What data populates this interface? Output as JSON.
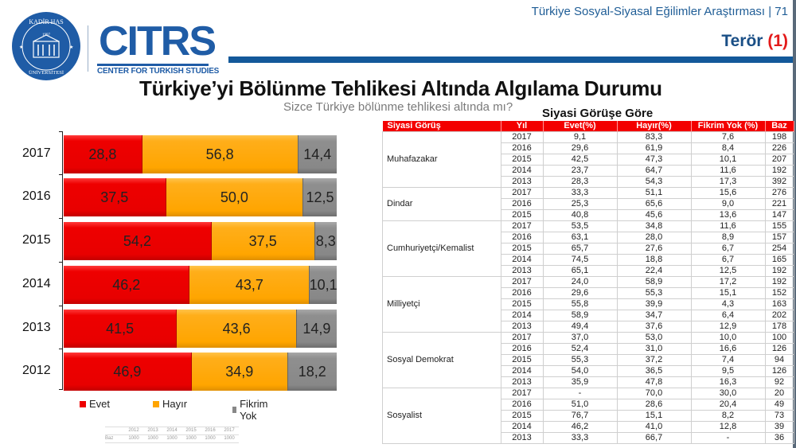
{
  "header": {
    "series_title": "Türkiye Sosyal-Siyasal Eğilimler Araştırması | 71",
    "section_title": "Terör",
    "section_number": "(1)",
    "logos": {
      "university": "Kadir Has Üniversitesi",
      "university_year": "1997",
      "center_acronym": "CITRS",
      "center_name": "CENTER FOR TURKISH STUDIES"
    }
  },
  "main": {
    "title": "Türkiye’yi Bölünme  Tehlikesi Altında Algılama Durumu",
    "question": "Sizce Türkiye bölünme tehlikesi altında mı?"
  },
  "colors": {
    "evet": "#ee0000",
    "hayir": "#ffa500",
    "fikrim_yok": "#888888",
    "brand_blue": "#13599a",
    "table_header": "#f30000"
  },
  "chart_data": [
    {
      "type": "bar",
      "orientation": "horizontal",
      "stacked": true,
      "title": "Türkiye’yi Bölünme Tehlikesi Altında Algılama Durumu",
      "subtitle": "Sizce Türkiye bölünme tehlikesi altında mı?",
      "categories": [
        "2017",
        "2016",
        "2015",
        "2014",
        "2013",
        "2012"
      ],
      "series": [
        {
          "name": "Evet",
          "values": [
            28.8,
            37.5,
            54.2,
            46.2,
            41.5,
            46.9
          ]
        },
        {
          "name": "Hayır",
          "values": [
            56.8,
            50.0,
            37.5,
            43.7,
            43.6,
            34.9
          ]
        },
        {
          "name": "Fikrim Yok",
          "values": [
            14.4,
            12.5,
            8.3,
            10.1,
            14.9,
            18.2
          ]
        }
      ],
      "labels": [
        [
          "28,8",
          "56,8",
          "14,4"
        ],
        [
          "37,5",
          "50,0",
          "12,5"
        ],
        [
          "54,2",
          "37,5",
          "8,3"
        ],
        [
          "46,2",
          "43,7",
          "10,1"
        ],
        [
          "41,5",
          "43,6",
          "14,9"
        ],
        [
          "46,9",
          "34,9",
          "18,2"
        ]
      ],
      "xlim": [
        0,
        100
      ],
      "legend": [
        "Evet",
        "Hayır",
        "Fikrim Yok"
      ],
      "legend_position": "bottom",
      "grid": false,
      "base_table": {
        "label": "Baz",
        "years": [
          "2012",
          "2013",
          "2014",
          "2015",
          "2016",
          "2017"
        ],
        "values": [
          "1000",
          "1000",
          "1000",
          "1000",
          "1000",
          "1000"
        ]
      }
    },
    {
      "type": "table",
      "title": "Siyasi Görüşe Göre",
      "columns": [
        "Siyasi Görüş",
        "Yıl",
        "Evet(%)",
        "Hayır(%)",
        "Fikrim Yok (%)",
        "Baz"
      ],
      "groups": [
        {
          "name": "Muhafazakar",
          "rows": [
            [
              "2017",
              "9,1",
              "83,3",
              "7,6",
              "198"
            ],
            [
              "2016",
              "29,6",
              "61,9",
              "8,4",
              "226"
            ],
            [
              "2015",
              "42,5",
              "47,3",
              "10,1",
              "207"
            ],
            [
              "2014",
              "23,7",
              "64,7",
              "11,6",
              "192"
            ],
            [
              "2013",
              "28,3",
              "54,3",
              "17,3",
              "392"
            ]
          ]
        },
        {
          "name": "Dindar",
          "rows": [
            [
              "2017",
              "33,3",
              "51,1",
              "15,6",
              "276"
            ],
            [
              "2016",
              "25,3",
              "65,6",
              "9,0",
              "221"
            ],
            [
              "2015",
              "40,8",
              "45,6",
              "13,6",
              "147"
            ]
          ]
        },
        {
          "name": "Cumhuriyetçi/Kemalist",
          "rows": [
            [
              "2017",
              "53,5",
              "34,8",
              "11,6",
              "155"
            ],
            [
              "2016",
              "63,1",
              "28,0",
              "8,9",
              "157"
            ],
            [
              "2015",
              "65,7",
              "27,6",
              "6,7",
              "254"
            ],
            [
              "2014",
              "74,5",
              "18,8",
              "6,7",
              "165"
            ],
            [
              "2013",
              "65,1",
              "22,4",
              "12,5",
              "192"
            ]
          ]
        },
        {
          "name": "Milliyetçi",
          "rows": [
            [
              "2017",
              "24,0",
              "58,9",
              "17,2",
              "192"
            ],
            [
              "2016",
              "29,6",
              "55,3",
              "15,1",
              "152"
            ],
            [
              "2015",
              "55,8",
              "39,9",
              "4,3",
              "163"
            ],
            [
              "2014",
              "58,9",
              "34,7",
              "6,4",
              "202"
            ],
            [
              "2013",
              "49,4",
              "37,6",
              "12,9",
              "178"
            ]
          ]
        },
        {
          "name": "Sosyal Demokrat",
          "rows": [
            [
              "2017",
              "37,0",
              "53,0",
              "10,0",
              "100"
            ],
            [
              "2016",
              "52,4",
              "31,0",
              "16,6",
              "126"
            ],
            [
              "2015",
              "55,3",
              "37,2",
              "7,4",
              "94"
            ],
            [
              "2014",
              "54,0",
              "36,5",
              "9,5",
              "126"
            ],
            [
              "2013",
              "35,9",
              "47,8",
              "16,3",
              "92"
            ]
          ]
        },
        {
          "name": "Sosyalist",
          "rows": [
            [
              "2017",
              "-",
              "70,0",
              "30,0",
              "20"
            ],
            [
              "2016",
              "51,0",
              "28,6",
              "20,4",
              "49"
            ],
            [
              "2015",
              "76,7",
              "15,1",
              "8,2",
              "73"
            ],
            [
              "2014",
              "46,2",
              "41,0",
              "12,8",
              "39"
            ],
            [
              "2013",
              "33,3",
              "66,7",
              "-",
              "36"
            ]
          ]
        }
      ]
    }
  ]
}
